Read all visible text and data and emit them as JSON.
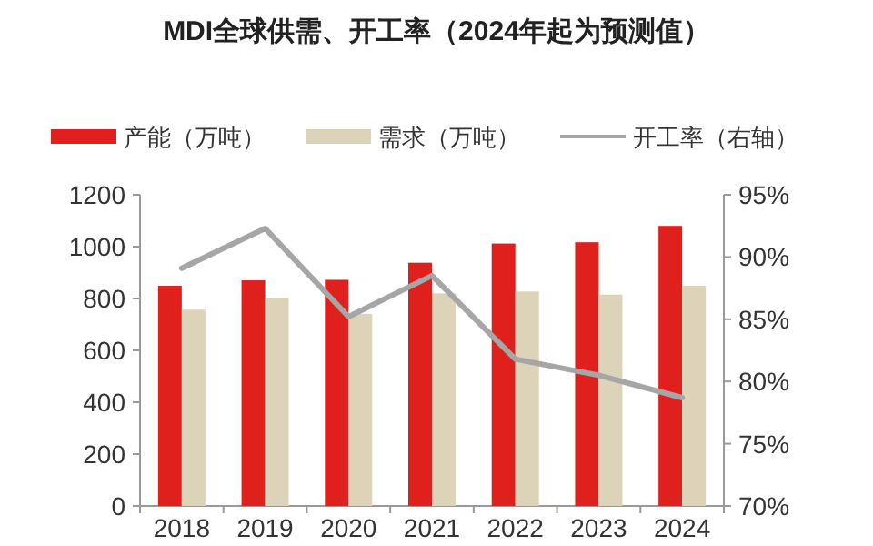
{
  "chart_data": {
    "type": "bar",
    "title": "MDI全球供需、开工率（2024年起为预测值）",
    "categories": [
      "2018",
      "2019",
      "2020",
      "2021",
      "2022",
      "2023",
      "2024"
    ],
    "series": [
      {
        "name": "产能（万吨）",
        "color": "#e0201c",
        "values": [
          849,
          870,
          872,
          938,
          1012,
          1017,
          1080
        ]
      },
      {
        "name": "需求（万吨）",
        "color": "#dcd3b8",
        "values": [
          757,
          802,
          741,
          820,
          827,
          815,
          849
        ]
      },
      {
        "name": "开工率（右轴）",
        "type": "line",
        "axis": "y2",
        "color": "#a6a6a6",
        "values": [
          89.1,
          92.3,
          85.2,
          88.5,
          81.8,
          80.5,
          78.7
        ]
      }
    ],
    "ylim": [
      0,
      1200
    ],
    "yticks": [
      0,
      200,
      400,
      600,
      800,
      1000,
      1200
    ],
    "y2lim": [
      70,
      95
    ],
    "y2ticks": [
      {
        "value": 70,
        "label": "70%"
      },
      {
        "value": 75,
        "label": "75%"
      },
      {
        "value": 80,
        "label": "80%"
      },
      {
        "value": 85,
        "label": "85%"
      },
      {
        "value": 90,
        "label": "90%"
      },
      {
        "value": 95,
        "label": "95%"
      }
    ],
    "grid": false,
    "legend": "top"
  }
}
